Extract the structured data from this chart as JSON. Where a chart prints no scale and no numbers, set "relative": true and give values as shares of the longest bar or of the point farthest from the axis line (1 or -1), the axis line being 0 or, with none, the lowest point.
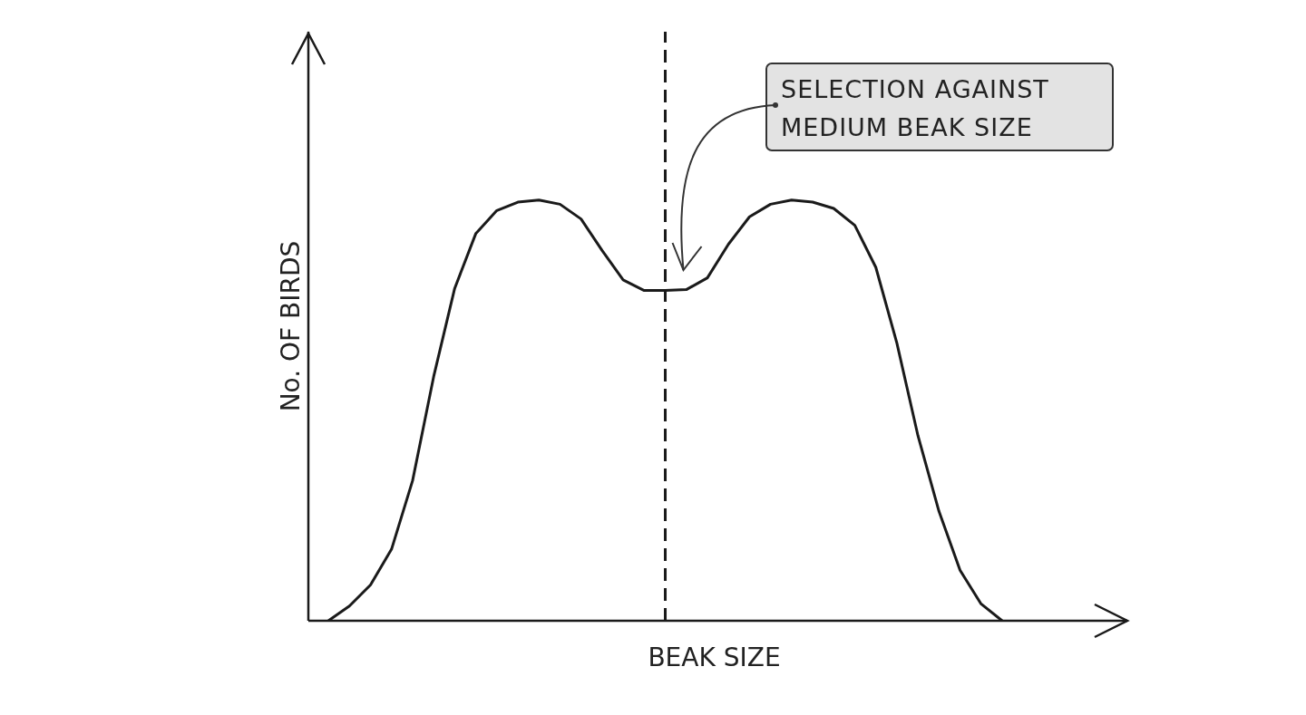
{
  "chart_data": {
    "type": "line",
    "relative": true,
    "xlabel": "BEAK SIZE",
    "ylabel": "No. OF BIRDS",
    "marker": "none",
    "line_style": "solid",
    "color": "#1a1a1a",
    "categories": [
      null,
      null,
      null,
      null,
      null,
      null,
      null,
      null,
      null,
      null,
      null,
      null,
      null,
      null,
      null,
      null,
      null,
      null,
      null,
      null,
      null,
      null,
      null,
      null,
      null,
      null,
      null,
      null,
      null,
      null,
      null,
      null,
      null
    ],
    "values": [
      0,
      0.035,
      0.085,
      0.17,
      0.333,
      0.58,
      0.79,
      0.92,
      0.975,
      0.995,
      1,
      0.99,
      0.955,
      0.88,
      0.81,
      0.785,
      0.785,
      0.787,
      0.815,
      0.895,
      0.96,
      0.99,
      1,
      0.995,
      0.98,
      0.94,
      0.84,
      0.66,
      0.44,
      0.26,
      0.12,
      0.04,
      0
    ],
    "annotations": [
      "SELECTION AGAINST MEDIUM BEAK SIZE"
    ]
  }
}
